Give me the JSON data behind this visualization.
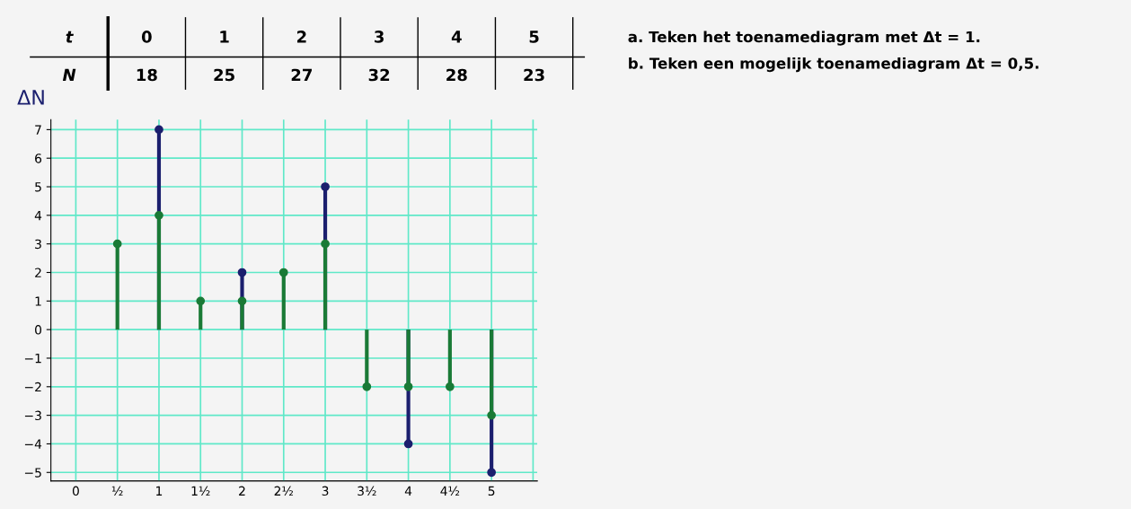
{
  "chart_data": {
    "type": "lollipop",
    "ylabel": "ΔN",
    "annotations": [
      "t",
      "0",
      "1",
      "2",
      "3",
      "4",
      "5",
      "N",
      "18",
      "25",
      "27",
      "32",
      "28",
      "23",
      "a. Teken het toenamediagram met Δt = 1.",
      "b. Teken een mogelijk toenamediagram Δt = 0,5."
    ],
    "series": [
      {
        "color": "#1b1f6e",
        "x": [
          1,
          2,
          3,
          4,
          5
        ],
        "values": [
          7,
          2,
          5,
          -4,
          -5
        ]
      },
      {
        "color": "#1a7a36",
        "x": [
          0.5,
          1,
          1.5,
          2,
          2.5,
          3,
          3.5,
          4,
          4.5,
          5
        ],
        "values": [
          3,
          4,
          1,
          1,
          2,
          3,
          -2,
          -2,
          -2,
          -3
        ]
      }
    ],
    "xlim": [
      -0.3,
      5.55
    ],
    "ylim": [
      -5.3,
      7.35
    ],
    "xticks": [
      0,
      {
        "value": 0.5,
        "label": "½"
      },
      1,
      {
        "value": 1.5,
        "label": "1½"
      },
      2,
      {
        "value": 2.5,
        "label": "2½"
      },
      3,
      {
        "value": 3.5,
        "label": "3½"
      },
      4,
      {
        "value": 4.5,
        "label": "4½"
      },
      5,
      {
        "value": 5.5,
        "label": null
      }
    ],
    "yticks": [
      -5,
      -4,
      -3,
      -2,
      -1,
      0,
      1,
      2,
      3,
      4,
      5,
      6,
      7
    ],
    "grid": true,
    "marker": "circle"
  }
}
